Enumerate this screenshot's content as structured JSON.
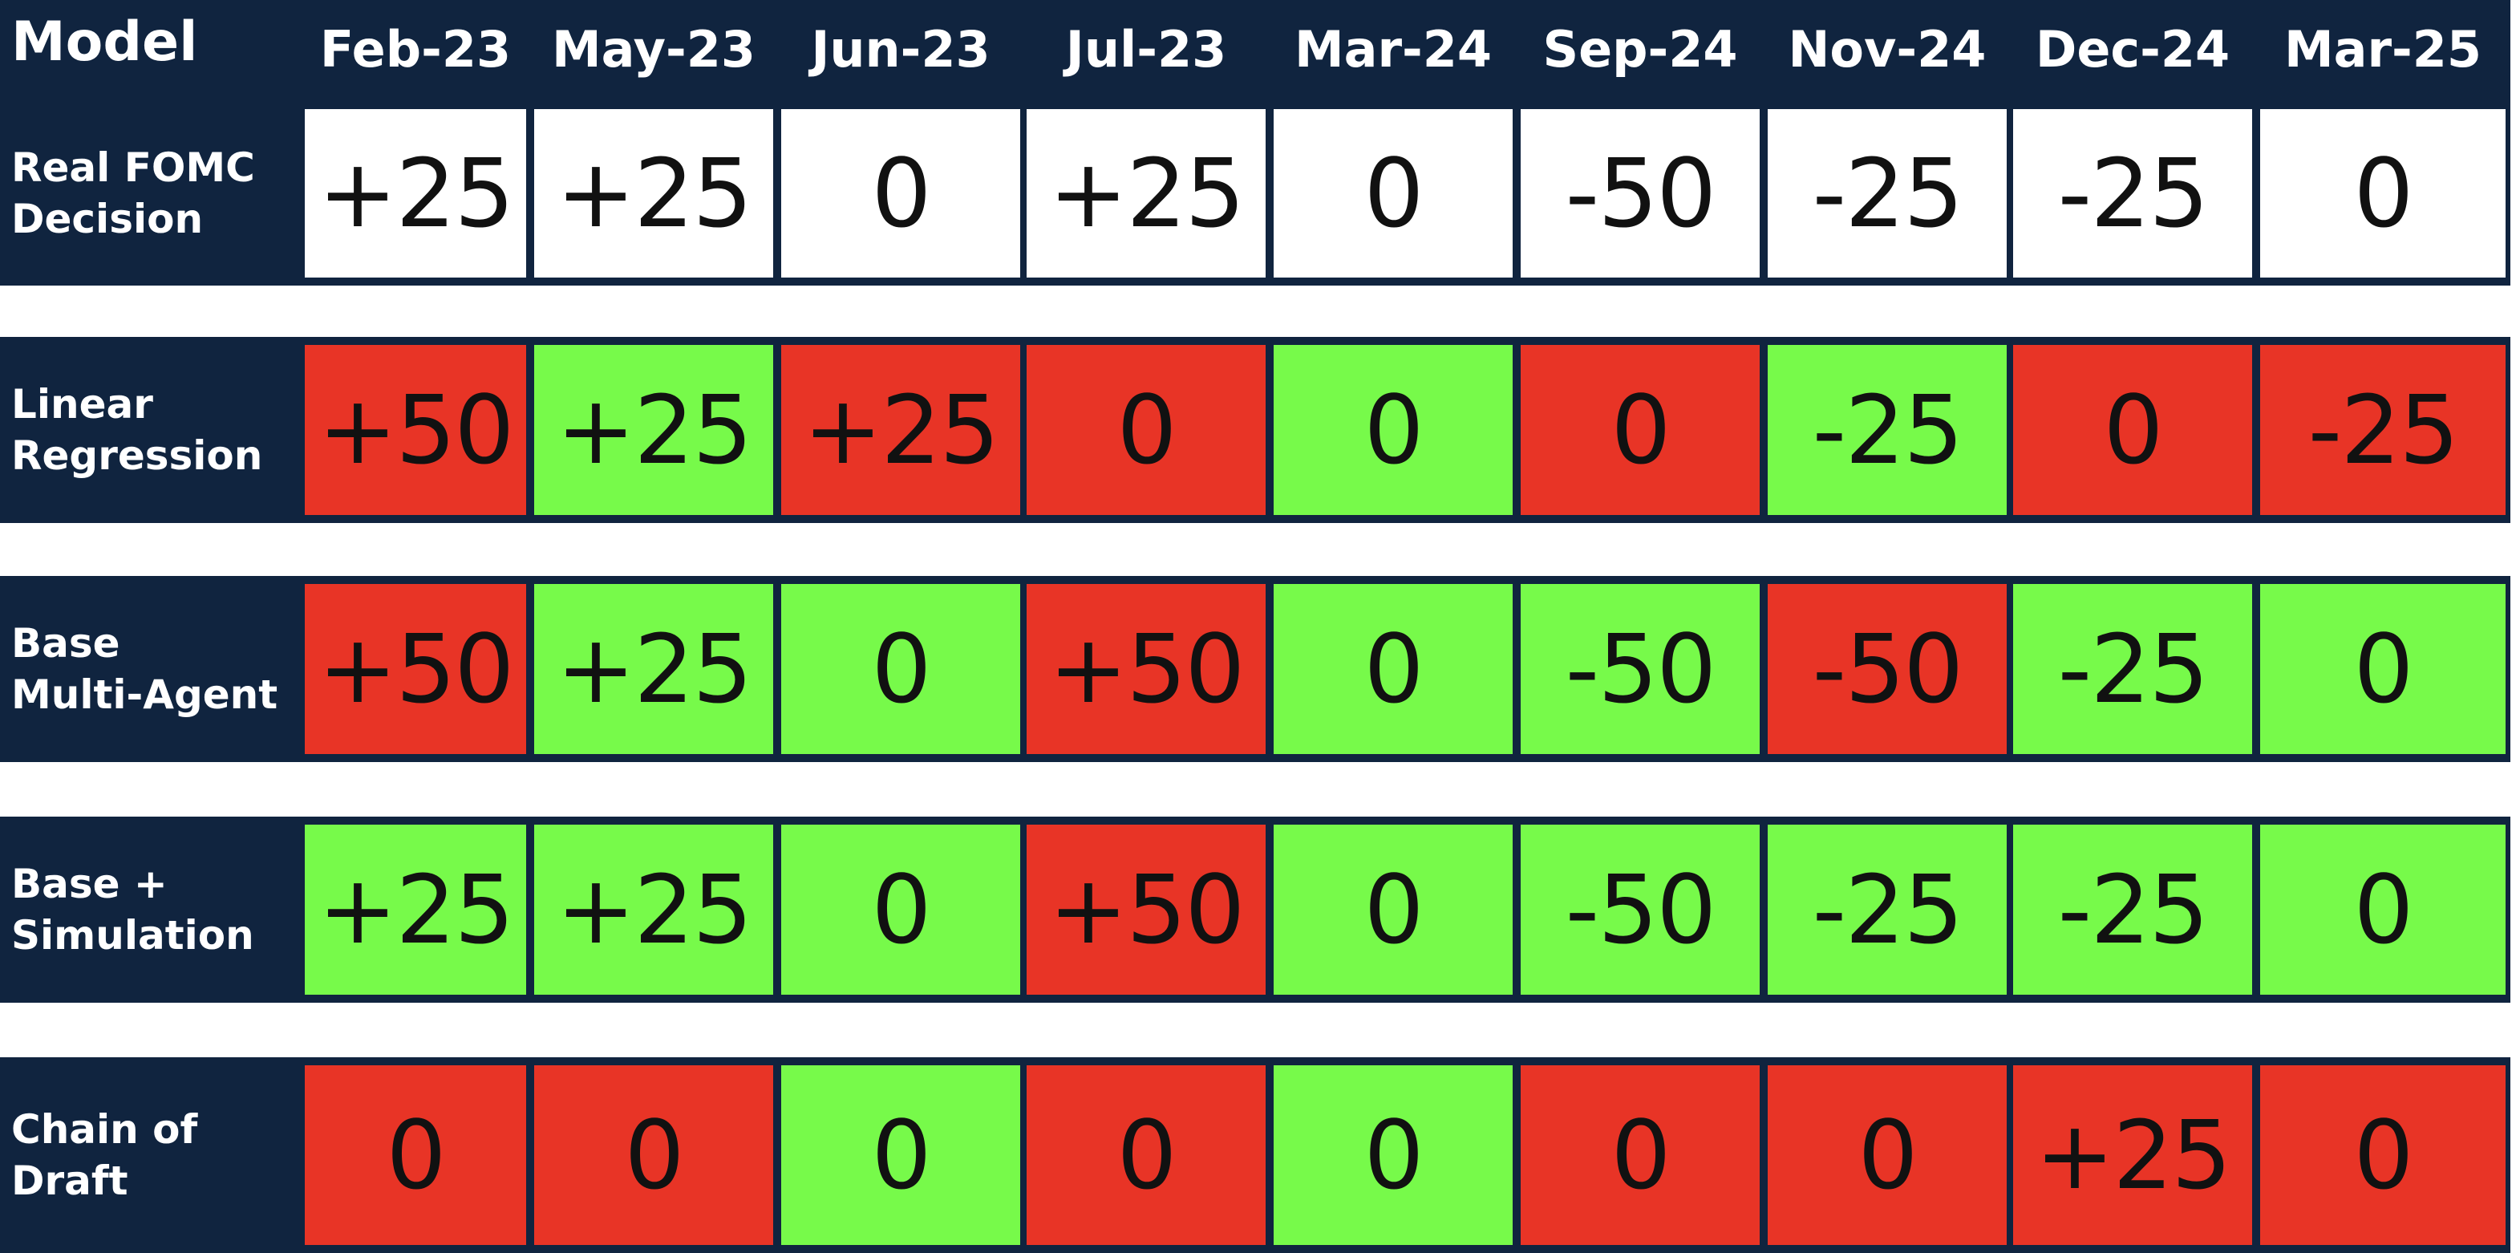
{
  "colors": {
    "header_bg": "#10243f",
    "header_text": "#ffffff",
    "actual": "#ffffff",
    "correct": "#77fa4a",
    "incorrect": "#e83426"
  },
  "header": {
    "model_label": "Model"
  },
  "chart_data": {
    "type": "table",
    "columns": [
      "Feb-23",
      "May-23",
      "Jun-23",
      "Jul-23",
      "Mar-24",
      "Sep-24",
      "Nov-24",
      "Dec-24",
      "Mar-25"
    ],
    "rows": [
      {
        "model": "Real FOMC\nDecision",
        "values": [
          "+25",
          "+25",
          "0",
          "+25",
          "0",
          "-50",
          "-25",
          "-25",
          "0"
        ],
        "status": [
          "actual",
          "actual",
          "actual",
          "actual",
          "actual",
          "actual",
          "actual",
          "actual",
          "actual"
        ]
      },
      {
        "model": "Linear\nRegression",
        "values": [
          "+50",
          "+25",
          "+25",
          "0",
          "0",
          "0",
          "-25",
          "0",
          "-25"
        ],
        "status": [
          "incorrect",
          "correct",
          "incorrect",
          "incorrect",
          "correct",
          "incorrect",
          "correct",
          "incorrect",
          "incorrect"
        ]
      },
      {
        "model": "Base\nMulti-Agent",
        "values": [
          "+50",
          "+25",
          "0",
          "+50",
          "0",
          "-50",
          "-50",
          "-25",
          "0"
        ],
        "status": [
          "incorrect",
          "correct",
          "correct",
          "incorrect",
          "correct",
          "correct",
          "incorrect",
          "correct",
          "correct"
        ]
      },
      {
        "model": "Base +\nSimulation",
        "values": [
          "+25",
          "+25",
          "0",
          "+50",
          "0",
          "-50",
          "-25",
          "-25",
          "0"
        ],
        "status": [
          "correct",
          "correct",
          "correct",
          "incorrect",
          "correct",
          "correct",
          "correct",
          "correct",
          "correct"
        ]
      },
      {
        "model": "Chain of\nDraft",
        "values": [
          "0",
          "0",
          "0",
          "0",
          "0",
          "0",
          "0",
          "+25",
          "0"
        ],
        "status": [
          "incorrect",
          "incorrect",
          "correct",
          "incorrect",
          "correct",
          "incorrect",
          "incorrect",
          "incorrect",
          "incorrect"
        ]
      }
    ]
  }
}
